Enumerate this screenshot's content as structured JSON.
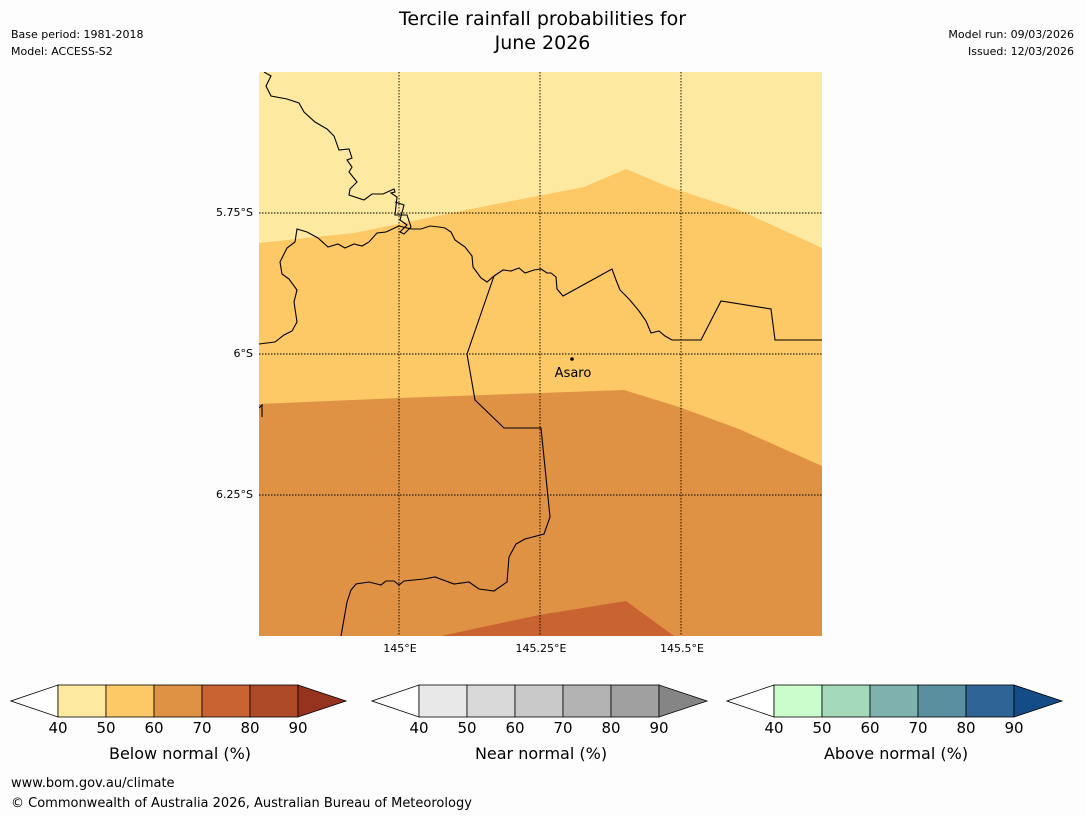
{
  "title_line1": "Tercile rainfall probabilities for",
  "title_line2": "June 2026",
  "meta_left": {
    "base_period": "Base period: 1981-2018",
    "model": "Model: ACCESS-S2"
  },
  "meta_right": {
    "model_run": "Model run: 09/03/2026",
    "issued": "Issued: 12/03/2026"
  },
  "map": {
    "lat_labels": [
      "5.75°S",
      "6°S",
      "6.25°S"
    ],
    "lon_labels": [
      "145°E",
      "145.25°E",
      "145.5°E"
    ],
    "place_label": "Asaro",
    "zone_colors": [
      "#fde9a0",
      "#fcc966",
      "#df9244",
      "#c96332"
    ]
  },
  "legends": [
    {
      "title": "Below normal (%)",
      "colors": [
        "#ffffff",
        "#fde9a0",
        "#fcc966",
        "#df9244",
        "#c96332",
        "#ae4a28",
        "#96331f"
      ],
      "ticks": [
        "40",
        "50",
        "60",
        "70",
        "80",
        "90"
      ]
    },
    {
      "title": "Near normal (%)",
      "colors": [
        "#ffffff",
        "#e8e8e8",
        "#d9d9d9",
        "#c9c9c9",
        "#b3b3b3",
        "#a0a0a0",
        "#858585"
      ],
      "ticks": [
        "40",
        "50",
        "60",
        "70",
        "80",
        "90"
      ]
    },
    {
      "title": "Above normal (%)",
      "colors": [
        "#ffffff",
        "#cbfccc",
        "#a4d9bb",
        "#7fb2ae",
        "#5a8f9f",
        "#2f6596",
        "#144d86"
      ],
      "ticks": [
        "40",
        "50",
        "60",
        "70",
        "80",
        "90"
      ]
    }
  ],
  "footer": {
    "url": "www.bom.gov.au/climate",
    "copyright": "© Commonwealth of Australia 2026, Australian Bureau of Meteorology"
  }
}
